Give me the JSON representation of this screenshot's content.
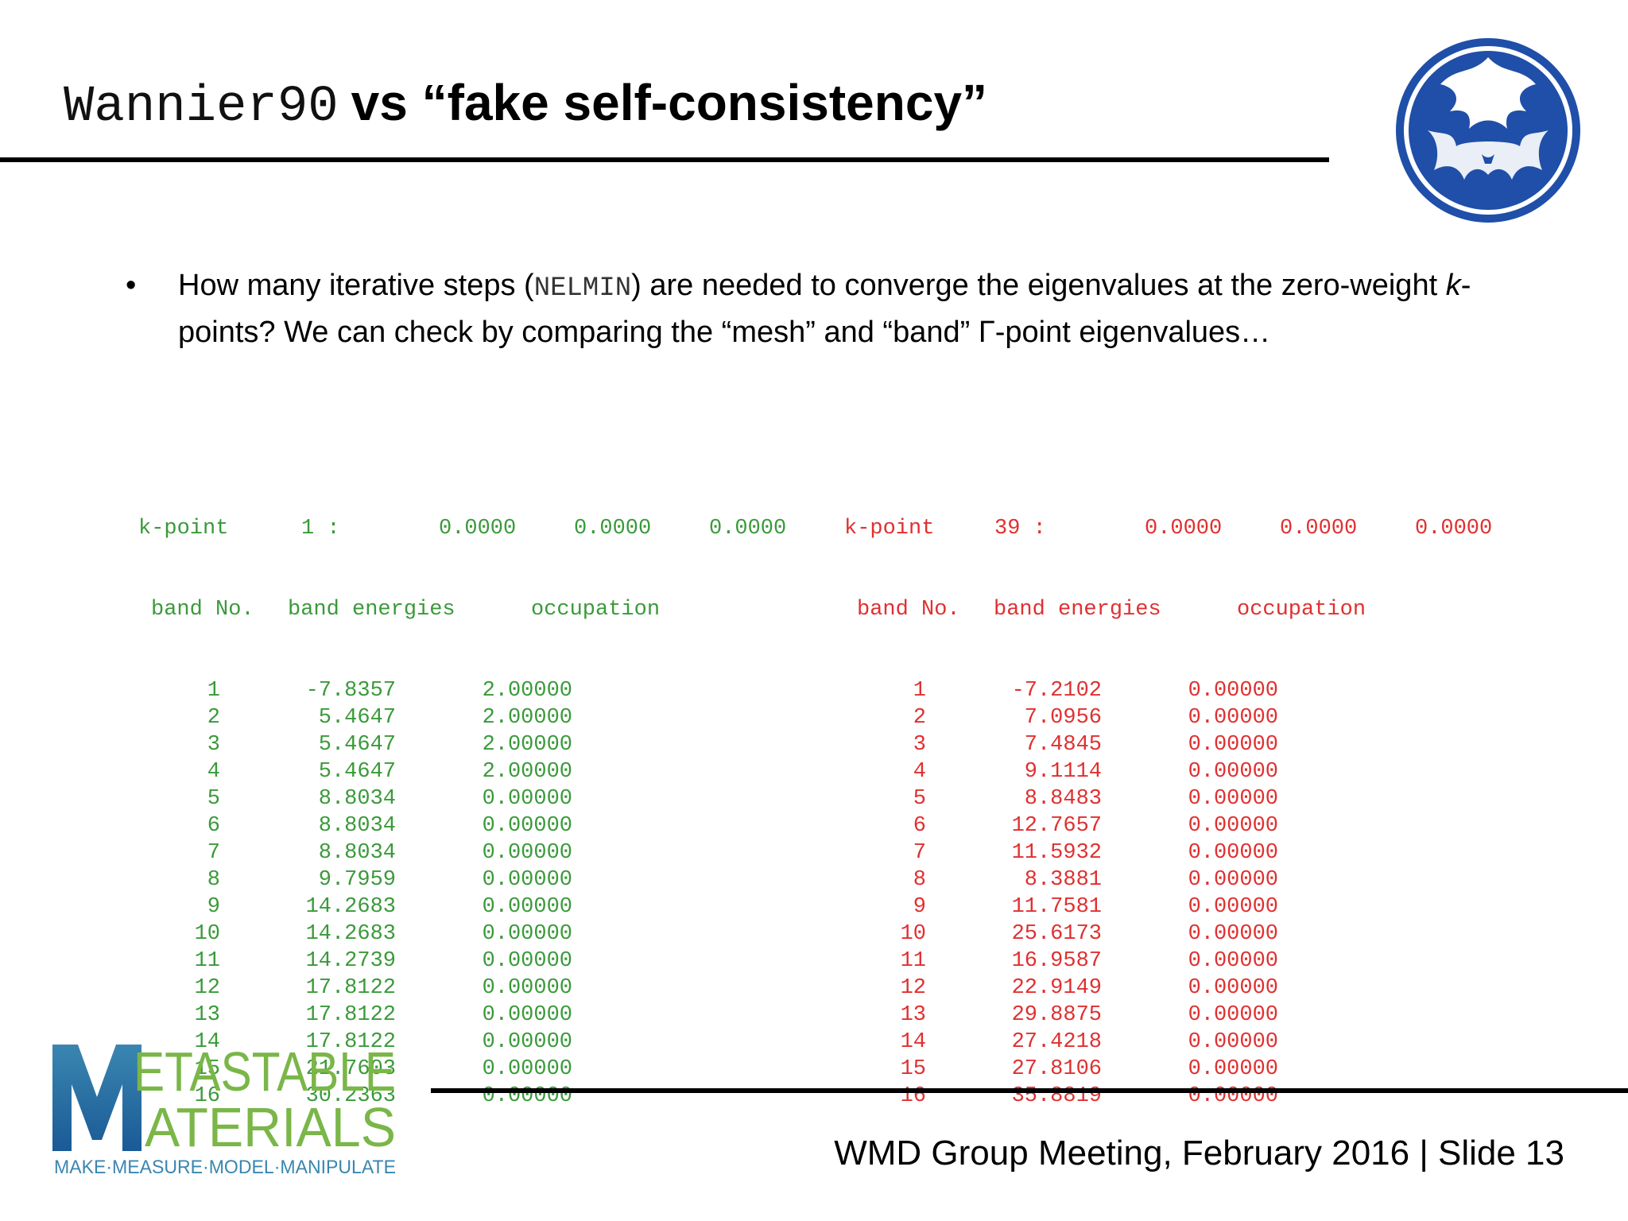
{
  "title": {
    "code": "Wannier90",
    "text": "vs “fake self-consistency”"
  },
  "bullet": {
    "marker": "•",
    "before": "How many iterative steps (",
    "code": "NELMIN",
    "middle": ") are needed to converge the eigenvalues at the zero-weight ",
    "k": "k",
    "after": "-points? We can check by comparing the “mesh” and “band” Γ-point eigenvalues…"
  },
  "left": {
    "kpoint": {
      "label": "k-point",
      "index": "1 :",
      "coords": [
        "0.0000",
        "0.0000",
        "0.0000"
      ]
    },
    "headers": [
      "band No.",
      "band energies",
      "occupation"
    ],
    "rows": [
      [
        "1",
        "-7.8357",
        "2.00000"
      ],
      [
        "2",
        "5.4647",
        "2.00000"
      ],
      [
        "3",
        "5.4647",
        "2.00000"
      ],
      [
        "4",
        "5.4647",
        "2.00000"
      ],
      [
        "5",
        "8.8034",
        "0.00000"
      ],
      [
        "6",
        "8.8034",
        "0.00000"
      ],
      [
        "7",
        "8.8034",
        "0.00000"
      ],
      [
        "8",
        "9.7959",
        "0.00000"
      ],
      [
        "9",
        "14.2683",
        "0.00000"
      ],
      [
        "10",
        "14.2683",
        "0.00000"
      ],
      [
        "11",
        "14.2739",
        "0.00000"
      ],
      [
        "12",
        "17.8122",
        "0.00000"
      ],
      [
        "13",
        "17.8122",
        "0.00000"
      ],
      [
        "14",
        "17.8122",
        "0.00000"
      ],
      [
        "15",
        "21.7603",
        "0.00000"
      ],
      [
        "16",
        "30.2363",
        "0.00000"
      ]
    ]
  },
  "right": {
    "kpoint": {
      "label": "k-point",
      "index": "39 :",
      "coords": [
        "0.0000",
        "0.0000",
        "0.0000"
      ]
    },
    "headers": [
      "band No.",
      "band energies",
      "occupation"
    ],
    "rows": [
      [
        "1",
        "-7.2102",
        "0.00000"
      ],
      [
        "2",
        "7.0956",
        "0.00000"
      ],
      [
        "3",
        "7.4845",
        "0.00000"
      ],
      [
        "4",
        "9.1114",
        "0.00000"
      ],
      [
        "5",
        "8.8483",
        "0.00000"
      ],
      [
        "6",
        "12.7657",
        "0.00000"
      ],
      [
        "7",
        "11.5932",
        "0.00000"
      ],
      [
        "8",
        "8.3881",
        "0.00000"
      ],
      [
        "9",
        "11.7581",
        "0.00000"
      ],
      [
        "10",
        "25.6173",
        "0.00000"
      ],
      [
        "11",
        "16.9587",
        "0.00000"
      ],
      [
        "12",
        "22.9149",
        "0.00000"
      ],
      [
        "13",
        "29.8875",
        "0.00000"
      ],
      [
        "14",
        "27.4218",
        "0.00000"
      ],
      [
        "15",
        "27.8106",
        "0.00000"
      ],
      [
        "16",
        "35.8819",
        "0.00000"
      ]
    ]
  },
  "logo": {
    "line1": "ETASTABLE",
    "line2": "ATERIALS",
    "big_letter": "M",
    "tagline": "MAKE·MEASURE·MODEL·MANIPULATE"
  },
  "footer": {
    "text": "WMD Group Meeting, February 2016 | Slide 13"
  },
  "colors": {
    "green": "#3a9a3a",
    "red": "#e03030",
    "seal_blue": "#1f4fa8",
    "logo_dark": "#1a5a96",
    "logo_teal": "#3a86b0",
    "logo_green": "#7ab648"
  },
  "icons": {
    "seal": "seal-icon",
    "logo": "metastable-materials-logo"
  }
}
